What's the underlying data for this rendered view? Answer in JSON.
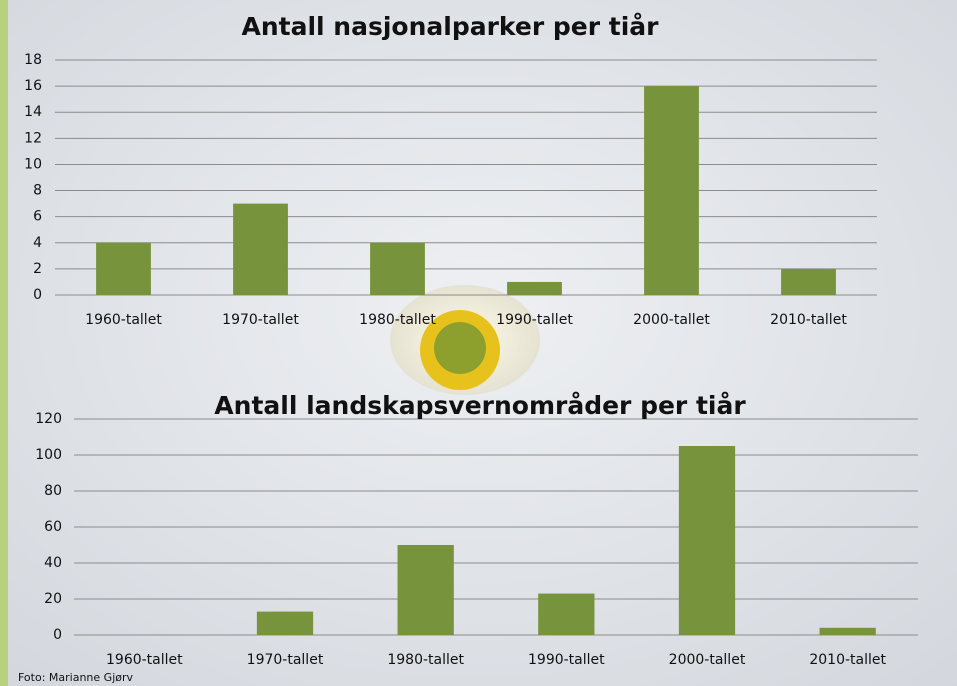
{
  "chart_data": [
    {
      "type": "bar",
      "title": "Antall nasjonalparker per tiår",
      "categories": [
        "1960-tallet",
        "1970-tallet",
        "1980-tallet",
        "1990-tallet",
        "2000-tallet",
        "2010-tallet"
      ],
      "values": [
        4,
        7,
        4,
        1,
        16,
        2
      ],
      "color": "#77933c",
      "ylim": [
        0,
        18
      ],
      "yticks": [
        0,
        2,
        4,
        6,
        8,
        10,
        12,
        14,
        16,
        18
      ],
      "grid": true
    },
    {
      "type": "bar",
      "title": "Antall landskapsvernområder per tiår",
      "categories": [
        "1960-tallet",
        "1970-tallet",
        "1980-tallet",
        "1990-tallet",
        "2000-tallet",
        "2010-tallet"
      ],
      "values": [
        0,
        13,
        50,
        23,
        105,
        4
      ],
      "color": "#77933c",
      "ylim": [
        0,
        120
      ],
      "yticks": [
        0,
        20,
        40,
        60,
        80,
        100,
        120
      ],
      "grid": true
    }
  ],
  "credit": "Foto: Marianne Gjørv"
}
